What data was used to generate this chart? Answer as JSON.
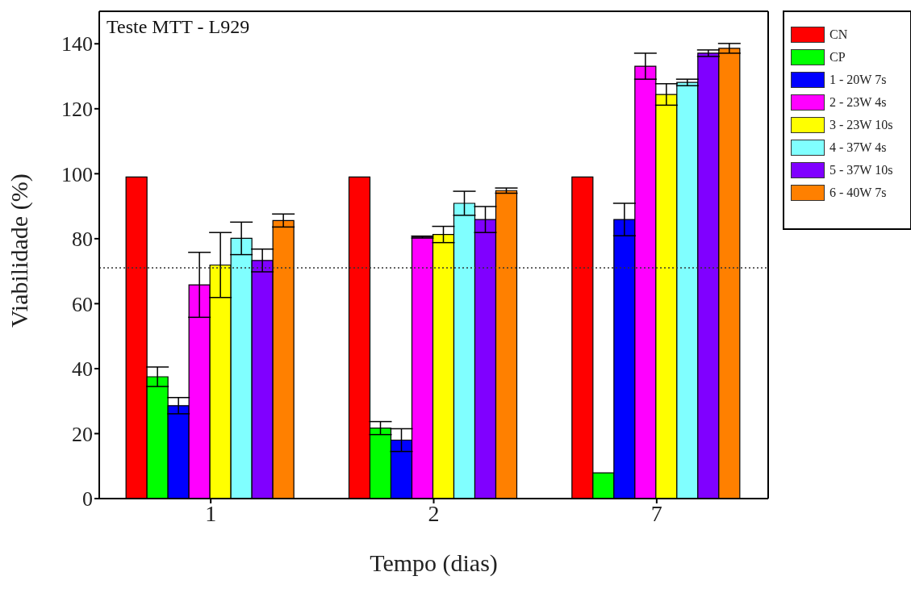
{
  "chart_data": {
    "type": "bar",
    "title": "Teste MTT - L929",
    "xlabel": "Tempo (dias)",
    "ylabel": "Viabilidade (%)",
    "categories": [
      "1",
      "2",
      "7"
    ],
    "series": [
      {
        "name": "CN",
        "color": "#ff0000",
        "values": [
          99,
          99,
          99
        ]
      },
      {
        "name": "CP",
        "color": "#00ff00",
        "values": [
          37.5,
          21.7,
          7.9
        ],
        "errors": [
          3,
          2,
          null
        ]
      },
      {
        "name": "1 - 20W 7s",
        "color": "#0000ff",
        "values": [
          28.6,
          18,
          85.9
        ],
        "errors": [
          2.5,
          3.5,
          5
        ]
      },
      {
        "name": "2 - 23W 4s",
        "color": "#ff00ff",
        "values": [
          65.8,
          80.5,
          133.1
        ],
        "errors": [
          10,
          0.3,
          4
        ]
      },
      {
        "name": "3 - 23W 10s",
        "color": "#ffff00",
        "values": [
          71.9,
          81.3,
          124.4
        ],
        "errors": [
          10,
          2.5,
          3.3
        ]
      },
      {
        "name": "4 - 37W 4s",
        "color": "#80ffff",
        "values": [
          80.1,
          90.9,
          128.1
        ],
        "errors": [
          5,
          3.7,
          1
        ]
      },
      {
        "name": "5 - 37W 10s",
        "color": "#8000ff",
        "values": [
          73.3,
          85.9,
          137.1
        ],
        "errors": [
          3.5,
          4,
          1
        ]
      },
      {
        "name": "6 - 40W 7s",
        "color": "#ff8000",
        "values": [
          85.6,
          94.8,
          138.6
        ],
        "errors": [
          2,
          0.8,
          1.5
        ]
      }
    ],
    "ylim": [
      0,
      150
    ],
    "yticks": [
      0,
      20,
      40,
      60,
      80,
      100,
      120,
      140
    ],
    "grid": false,
    "legend": "top right",
    "ref_lines": [
      {
        "axis": "y",
        "value": 71,
        "line_style": "dotted"
      }
    ]
  }
}
